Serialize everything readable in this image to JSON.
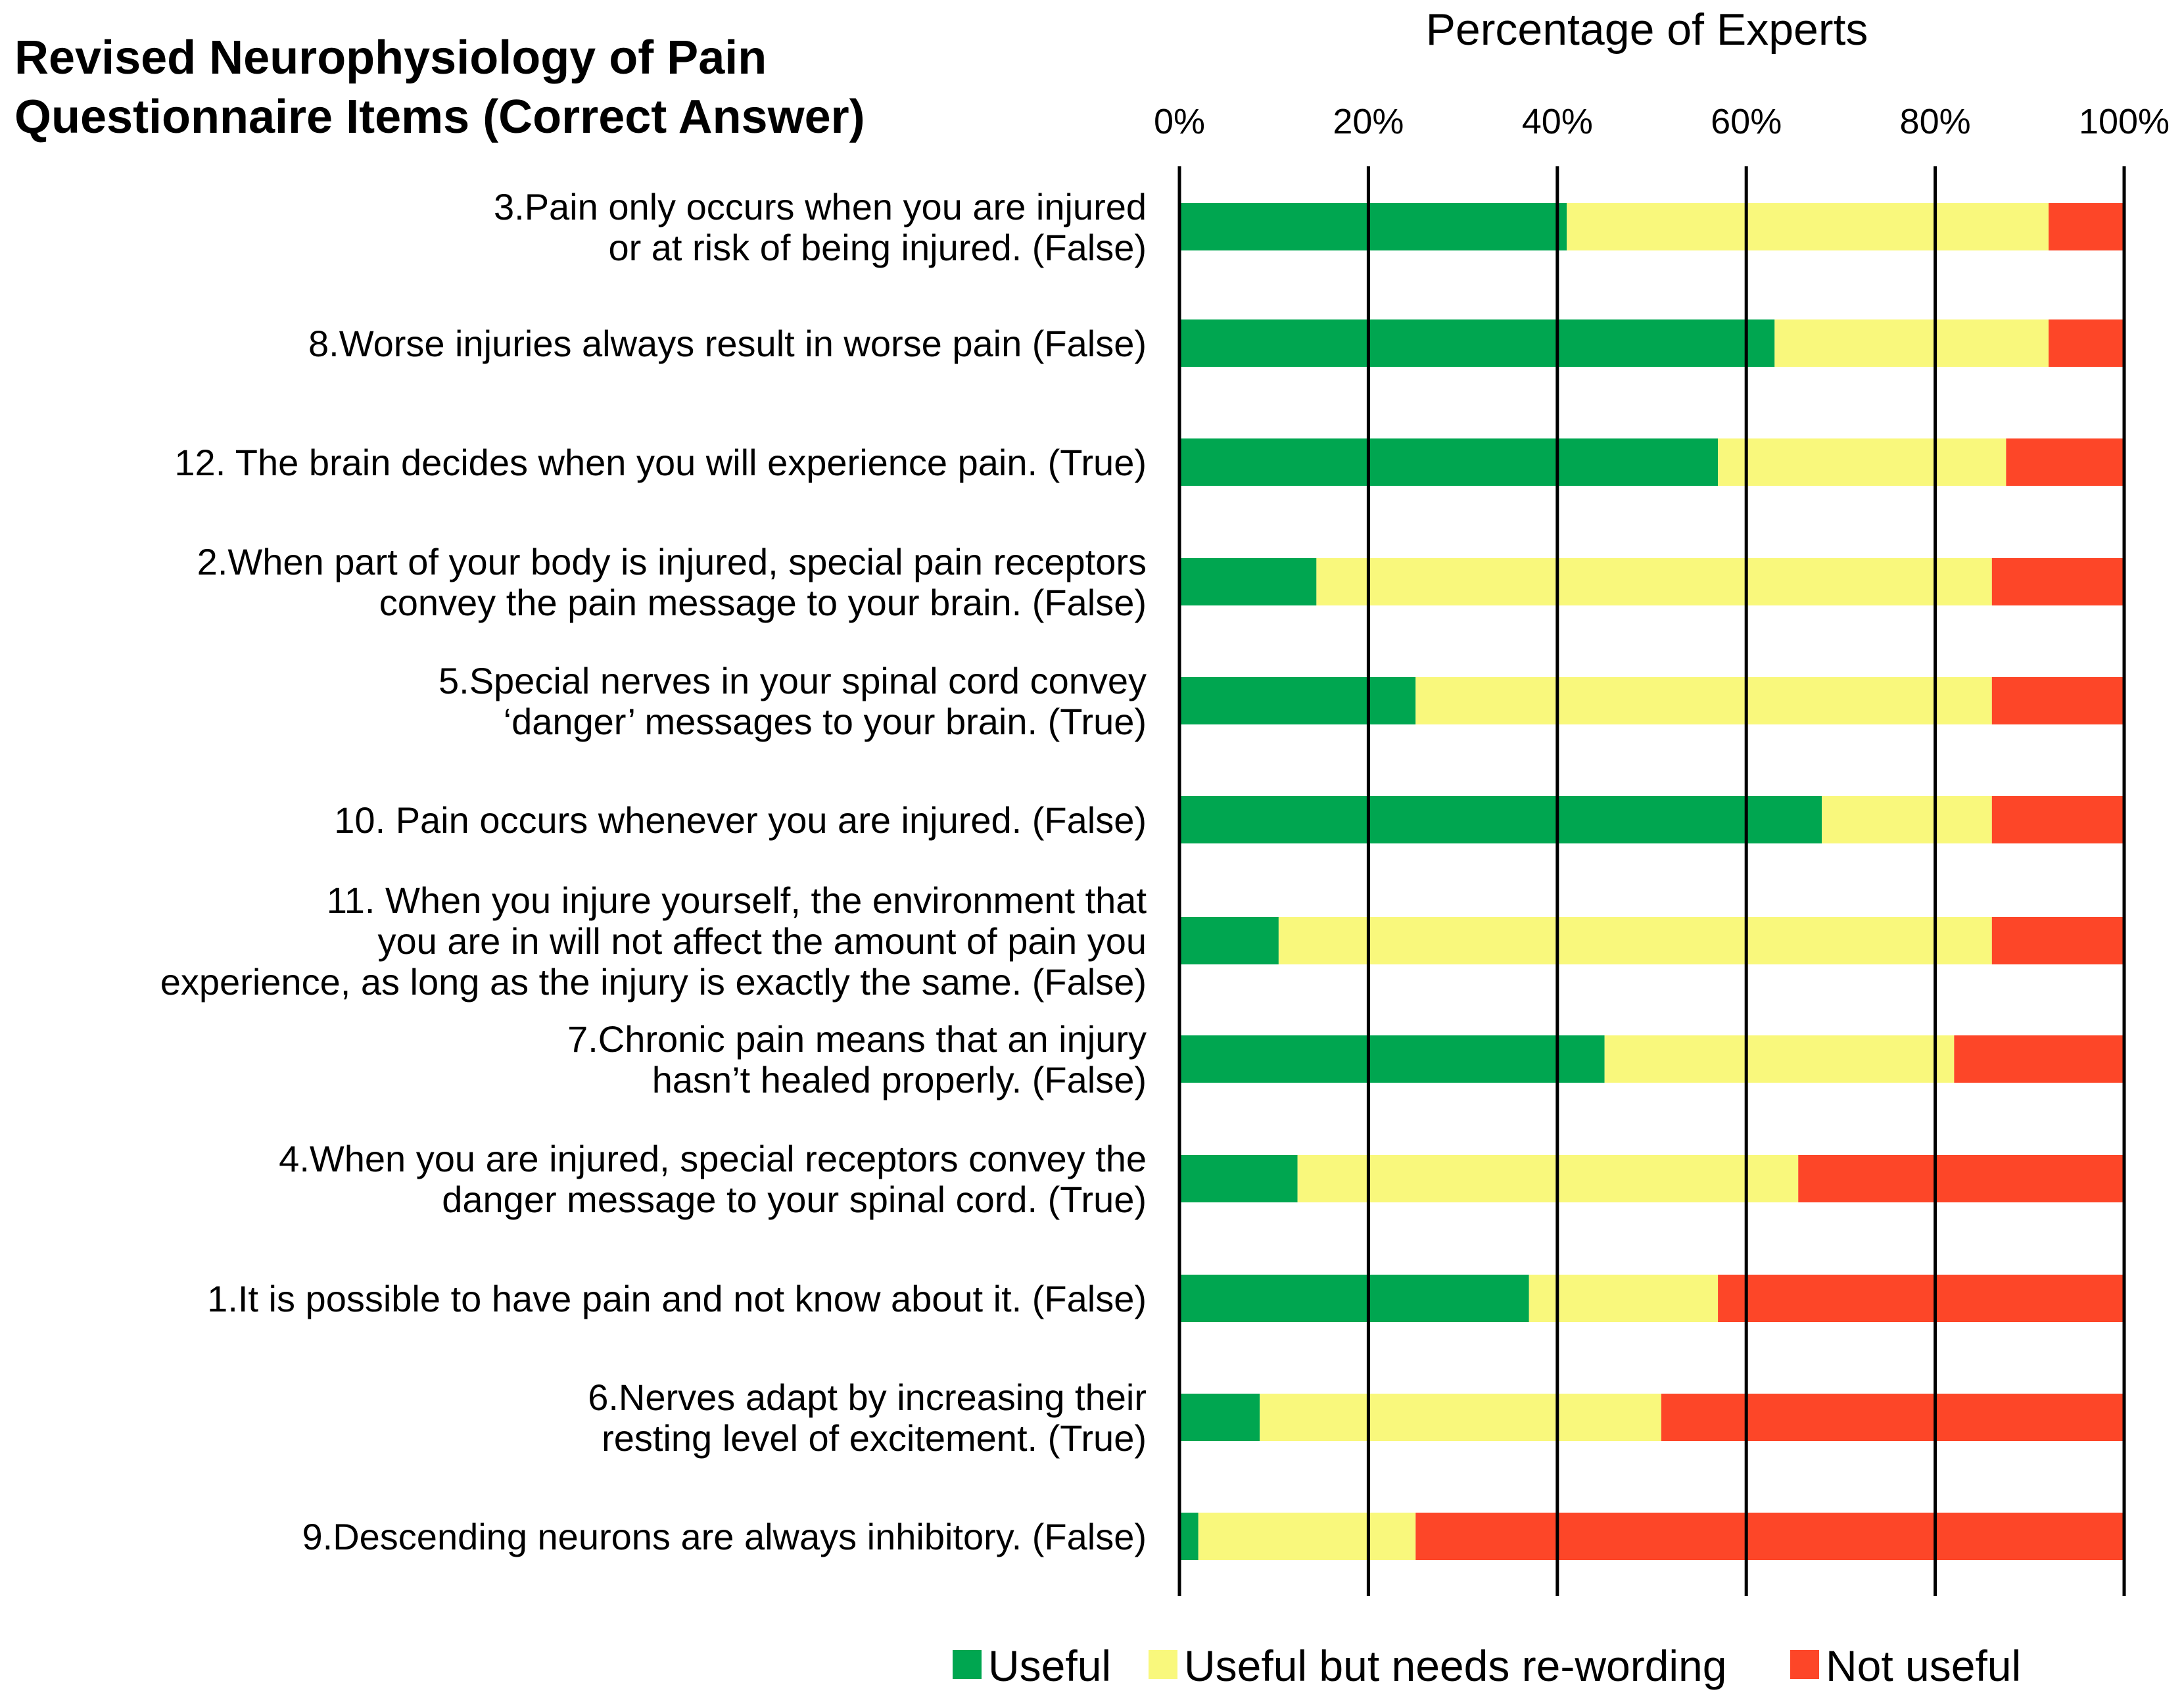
{
  "chart_data": {
    "type": "bar",
    "stacked": true,
    "orientation": "horizontal",
    "title": [
      "Revised Neurophysiology of Pain",
      "Questionnaire Items (Correct Answer)"
    ],
    "xlabel": "Percentage of Experts",
    "xlim": [
      0,
      100
    ],
    "x_ticks": [
      "0%",
      "20%",
      "40%",
      "60%",
      "80%",
      "100%"
    ],
    "x_tick_values": [
      0,
      20,
      40,
      60,
      80,
      100
    ],
    "grid": true,
    "legend_position": "bottom",
    "categories": [
      [
        "3.Pain only occurs when you are injured",
        "or at risk of being injured. (False)"
      ],
      [
        "8.Worse injuries always result in worse pain (False)"
      ],
      [
        "12. The brain decides when you will experience pain. (True)"
      ],
      [
        "2.When part of your body is injured, special pain receptors",
        "convey the pain message to your brain. (False)"
      ],
      [
        "5.Special nerves in your spinal cord convey",
        "‘danger’ messages to your brain. (True)"
      ],
      [
        "10. Pain occurs whenever you are injured. (False)"
      ],
      [
        "11.  When you injure yourself, the environment that",
        "you are in will not affect the amount of pain you",
        "experience, as long as the injury is exactly the same. (False)"
      ],
      [
        "7.Chronic pain means that an injury",
        "hasn’t healed properly. (False)"
      ],
      [
        "4.When you are injured, special receptors convey the",
        "danger message to your spinal cord. (True)"
      ],
      [
        "1.It is possible to have pain and not know about it. (False)"
      ],
      [
        "6.Nerves adapt by increasing their",
        "resting level of excitement. (True)"
      ],
      [
        "9.Descending neurons are always inhibitory. (False)"
      ]
    ],
    "series": [
      {
        "name": "Useful",
        "color": "#00a650",
        "values": [
          41,
          63,
          57,
          14.5,
          25,
          68,
          10.5,
          45,
          12.5,
          37,
          8.5,
          2
        ]
      },
      {
        "name": "Useful but needs re-wording",
        "color": "#f9f87c",
        "values": [
          51,
          29,
          30.5,
          71.5,
          61,
          18,
          75.5,
          37,
          53,
          20,
          42.5,
          23
        ]
      },
      {
        "name": "Not useful",
        "color": "#fd4628",
        "values": [
          8,
          8,
          12.5,
          14,
          14,
          14,
          14,
          18,
          34.5,
          43,
          49,
          75
        ]
      }
    ]
  }
}
